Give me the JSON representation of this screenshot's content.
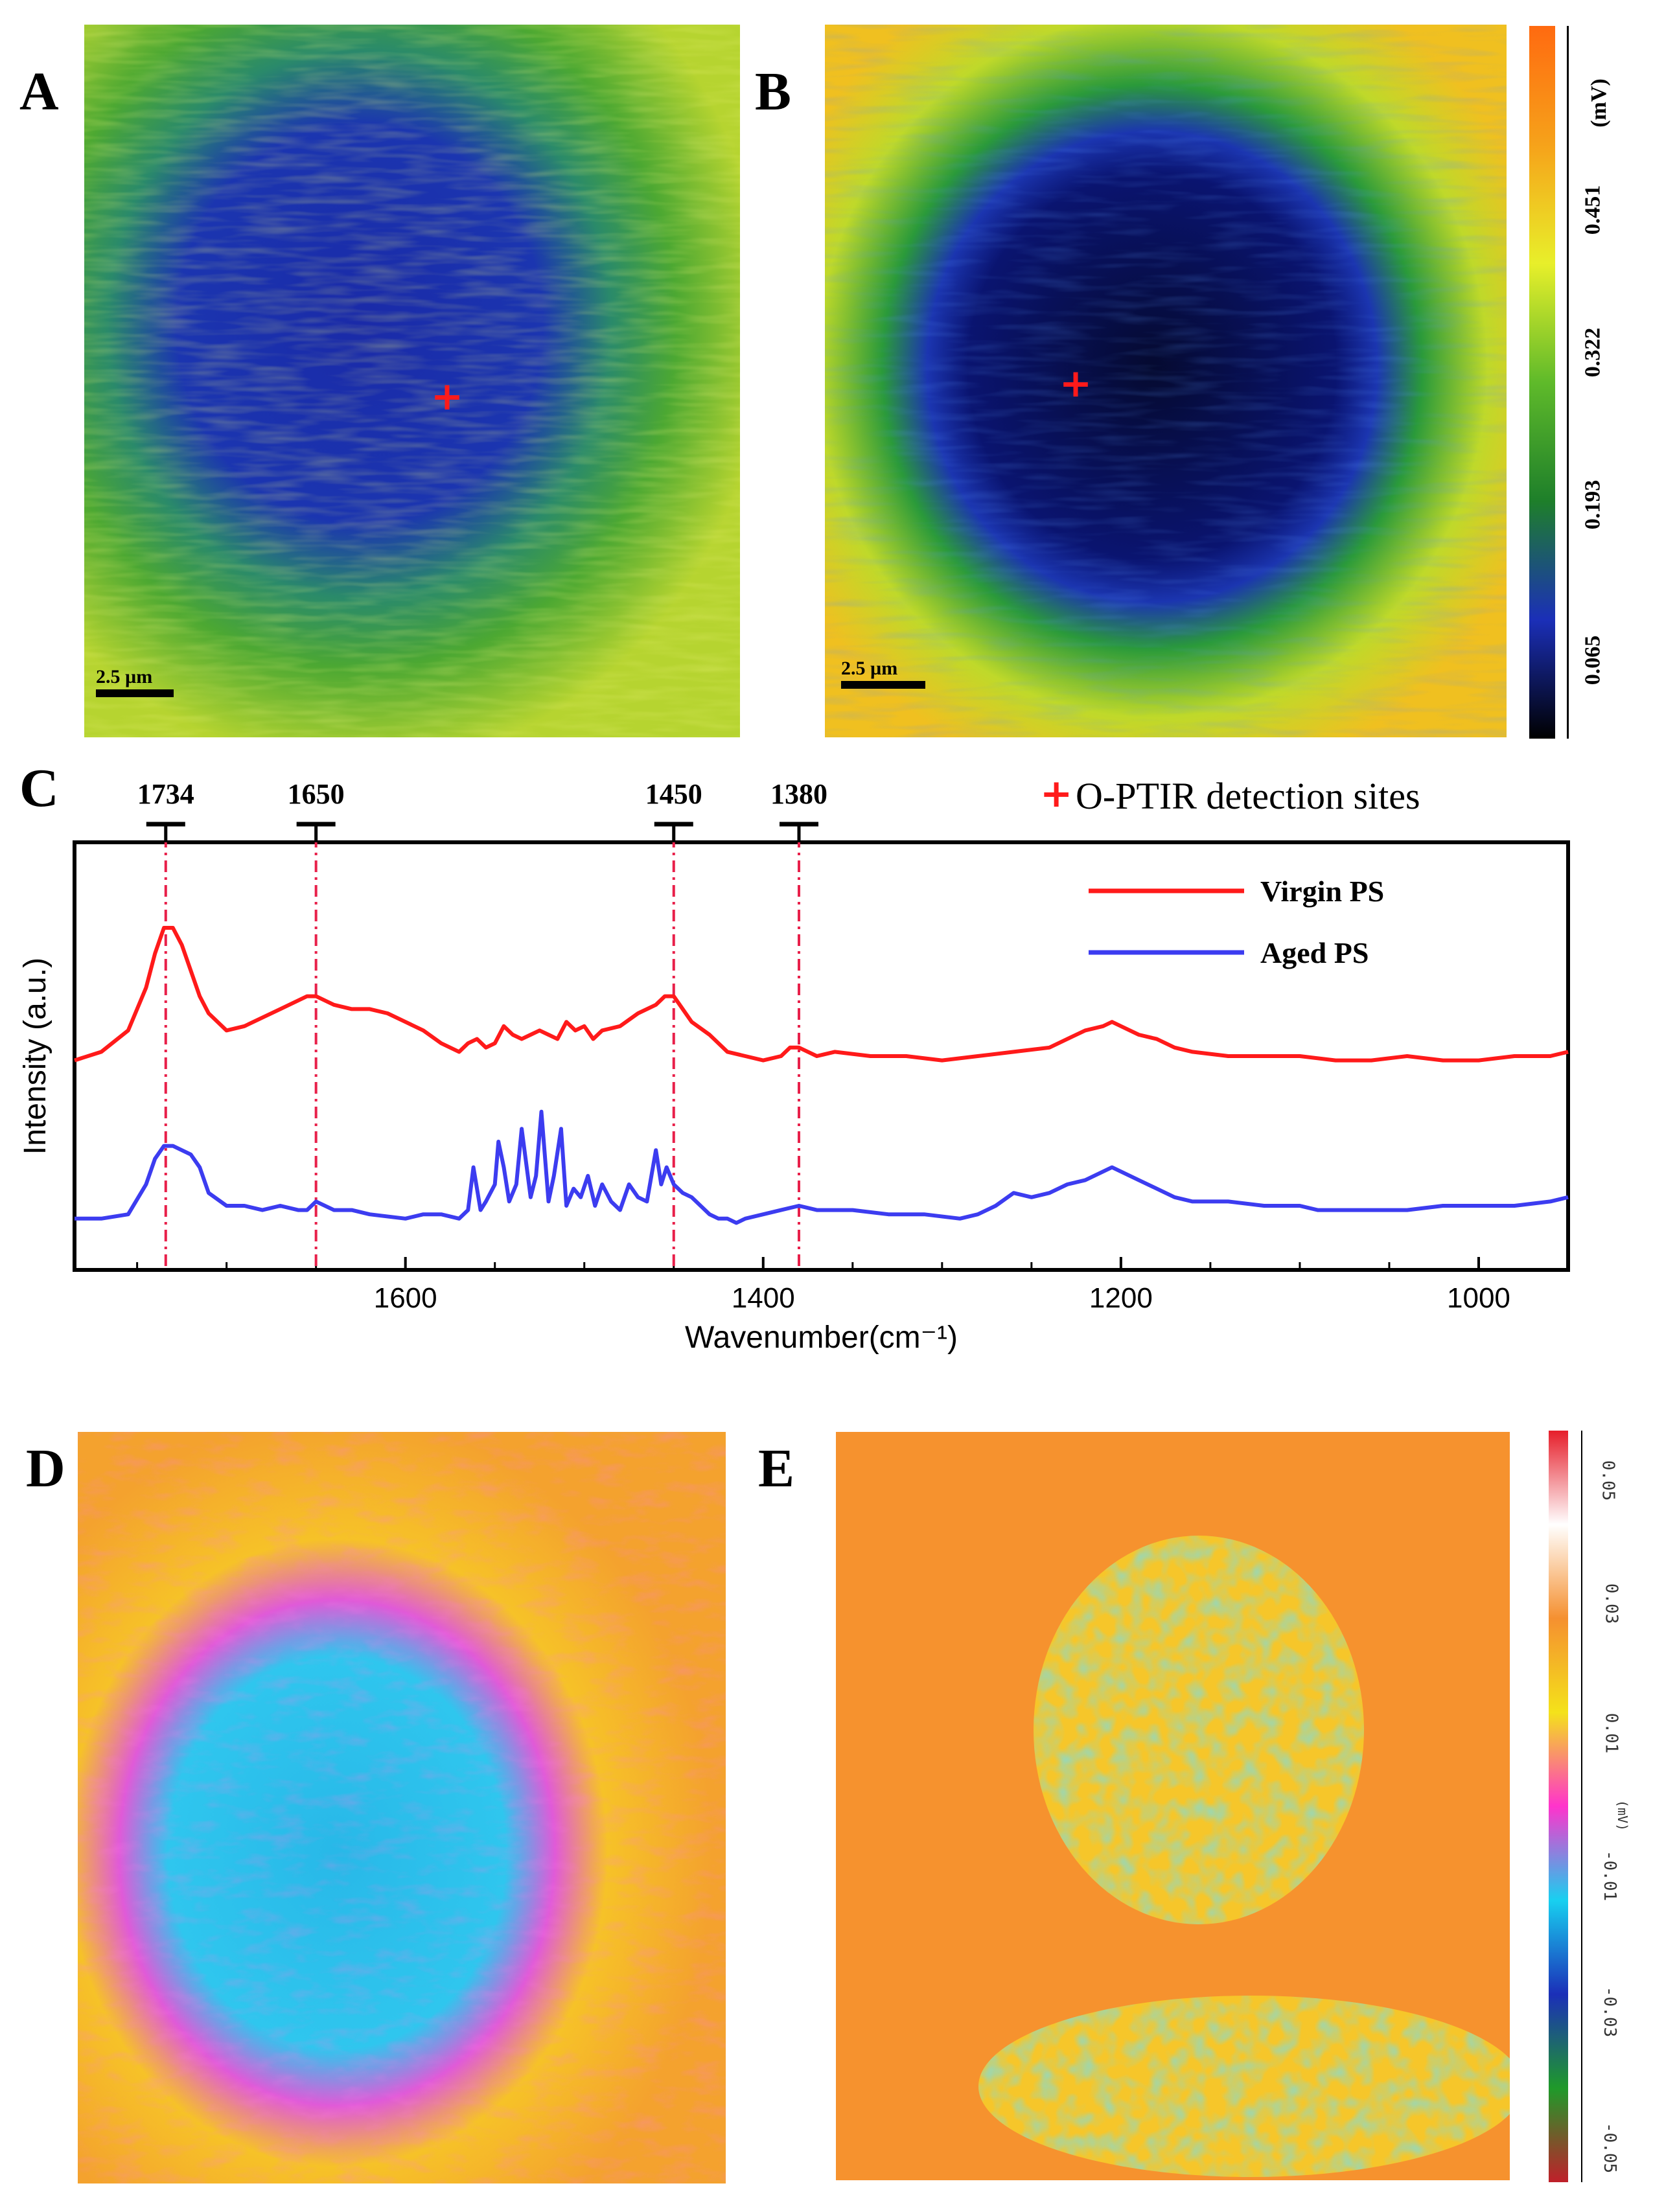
{
  "panels": {
    "A": {
      "label": "A",
      "scalebar": "2.5 µm"
    },
    "B": {
      "label": "B",
      "scalebar": "2.5 µm"
    },
    "C": {
      "label": "C"
    },
    "D": {
      "label": "D"
    },
    "E": {
      "label": "E"
    }
  },
  "colorbar_top": {
    "unit": "(mV)",
    "ticks": [
      "0.065",
      "0.193",
      "0.322",
      "0.451"
    ],
    "colors": [
      "#000000",
      "#1b2fb8",
      "#1e7f2a",
      "#5fba2a",
      "#e8ef2a",
      "#f6a21a",
      "#ff6a10"
    ]
  },
  "colorbar_bottom": {
    "unit": "(mV)",
    "ticks": [
      "-0.05",
      "-0.03",
      "-0.01",
      "0.01",
      "0.03",
      "0.05"
    ],
    "colors": [
      "#c0202a",
      "#1f9a2a",
      "#1b2fb8",
      "#18d0f0",
      "#ff33cc",
      "#f4e21a",
      "#f59030",
      "#ffffff",
      "#e61e2a"
    ]
  },
  "detection_note": {
    "symbol": "+",
    "text": "O-PTIR detection sites"
  },
  "chart_data": {
    "type": "line",
    "xlabel": "Wavenumber(cm⁻¹)",
    "ylabel": "Intensity (a.u.)",
    "xlim": [
      1785,
      950
    ],
    "xticks": [
      1600,
      1400,
      1200,
      1000
    ],
    "ylim": [
      0,
      1
    ],
    "marker_lines": [
      1734,
      1650,
      1450,
      1380
    ],
    "series": [
      {
        "name": "Virgin PS",
        "color": "#ff1a1a",
        "x": [
          1785,
          1770,
          1755,
          1745,
          1740,
          1735,
          1730,
          1725,
          1720,
          1715,
          1710,
          1700,
          1690,
          1680,
          1670,
          1660,
          1655,
          1650,
          1640,
          1630,
          1620,
          1610,
          1600,
          1590,
          1580,
          1570,
          1565,
          1560,
          1555,
          1550,
          1545,
          1540,
          1535,
          1530,
          1525,
          1520,
          1515,
          1510,
          1505,
          1500,
          1495,
          1490,
          1480,
          1470,
          1460,
          1455,
          1450,
          1445,
          1440,
          1430,
          1420,
          1410,
          1400,
          1390,
          1385,
          1380,
          1370,
          1360,
          1340,
          1320,
          1300,
          1280,
          1260,
          1240,
          1230,
          1220,
          1210,
          1205,
          1200,
          1190,
          1180,
          1170,
          1160,
          1140,
          1120,
          1100,
          1080,
          1060,
          1040,
          1020,
          1000,
          980,
          960,
          950
        ],
        "y": [
          0.49,
          0.51,
          0.56,
          0.66,
          0.74,
          0.8,
          0.8,
          0.76,
          0.7,
          0.64,
          0.6,
          0.56,
          0.57,
          0.59,
          0.61,
          0.63,
          0.64,
          0.64,
          0.62,
          0.61,
          0.61,
          0.6,
          0.58,
          0.56,
          0.53,
          0.51,
          0.53,
          0.54,
          0.52,
          0.53,
          0.57,
          0.55,
          0.54,
          0.55,
          0.56,
          0.55,
          0.54,
          0.58,
          0.56,
          0.57,
          0.54,
          0.56,
          0.57,
          0.6,
          0.62,
          0.64,
          0.64,
          0.61,
          0.58,
          0.55,
          0.51,
          0.5,
          0.49,
          0.5,
          0.52,
          0.52,
          0.5,
          0.51,
          0.5,
          0.5,
          0.49,
          0.5,
          0.51,
          0.52,
          0.54,
          0.56,
          0.57,
          0.58,
          0.57,
          0.55,
          0.54,
          0.52,
          0.51,
          0.5,
          0.5,
          0.5,
          0.49,
          0.49,
          0.5,
          0.49,
          0.49,
          0.5,
          0.5,
          0.51
        ]
      },
      {
        "name": "Aged PS",
        "color": "#3c3cf0",
        "x": [
          1785,
          1770,
          1755,
          1745,
          1740,
          1735,
          1730,
          1725,
          1720,
          1715,
          1710,
          1700,
          1690,
          1680,
          1670,
          1660,
          1655,
          1650,
          1640,
          1630,
          1620,
          1600,
          1590,
          1580,
          1570,
          1565,
          1562,
          1558,
          1555,
          1550,
          1548,
          1545,
          1542,
          1538,
          1535,
          1530,
          1527,
          1524,
          1520,
          1517,
          1513,
          1510,
          1506,
          1502,
          1498,
          1494,
          1490,
          1485,
          1480,
          1475,
          1470,
          1465,
          1460,
          1457,
          1454,
          1450,
          1445,
          1440,
          1435,
          1430,
          1425,
          1420,
          1415,
          1410,
          1400,
          1390,
          1380,
          1370,
          1350,
          1330,
          1310,
          1290,
          1280,
          1270,
          1260,
          1250,
          1240,
          1230,
          1220,
          1210,
          1205,
          1200,
          1190,
          1180,
          1170,
          1160,
          1140,
          1120,
          1100,
          1090,
          1080,
          1060,
          1040,
          1020,
          1000,
          980,
          960,
          950
        ],
        "y": [
          0.12,
          0.12,
          0.13,
          0.2,
          0.26,
          0.29,
          0.29,
          0.28,
          0.27,
          0.24,
          0.18,
          0.15,
          0.15,
          0.14,
          0.15,
          0.14,
          0.14,
          0.16,
          0.14,
          0.14,
          0.13,
          0.12,
          0.13,
          0.13,
          0.12,
          0.14,
          0.24,
          0.14,
          0.16,
          0.2,
          0.3,
          0.24,
          0.16,
          0.2,
          0.33,
          0.17,
          0.22,
          0.37,
          0.16,
          0.22,
          0.33,
          0.15,
          0.19,
          0.17,
          0.22,
          0.15,
          0.2,
          0.16,
          0.14,
          0.2,
          0.17,
          0.16,
          0.28,
          0.2,
          0.24,
          0.2,
          0.18,
          0.17,
          0.15,
          0.13,
          0.12,
          0.12,
          0.11,
          0.12,
          0.13,
          0.14,
          0.15,
          0.14,
          0.14,
          0.13,
          0.13,
          0.12,
          0.13,
          0.15,
          0.18,
          0.17,
          0.18,
          0.2,
          0.21,
          0.23,
          0.24,
          0.23,
          0.21,
          0.19,
          0.17,
          0.16,
          0.16,
          0.15,
          0.15,
          0.14,
          0.14,
          0.14,
          0.14,
          0.15,
          0.15,
          0.15,
          0.16,
          0.17
        ]
      }
    ],
    "legend": [
      "Virgin PS",
      "Aged PS"
    ],
    "legend_position": "top-right"
  }
}
